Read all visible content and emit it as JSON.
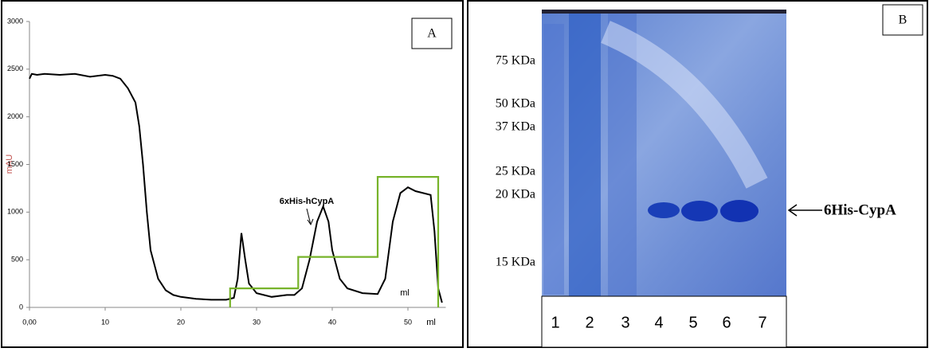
{
  "chart_data": {
    "type": "line",
    "panel_label": "A",
    "y_label": "mAU",
    "x_label": "ml",
    "annotations": [
      "6xHis-hCypA",
      "ml"
    ],
    "xlim": [
      0,
      55
    ],
    "xticks": [
      {
        "value": 0,
        "label": "0,00"
      },
      10,
      20,
      30,
      40,
      50
    ],
    "ylim": [
      0,
      3000
    ],
    "yticks": [
      0,
      500,
      1000,
      1500,
      2000,
      2500,
      3000
    ],
    "series": [
      {
        "color": "#000000",
        "x": [
          0,
          0.3,
          1,
          2,
          4,
          6,
          8,
          10,
          11,
          12,
          13,
          14,
          14.5,
          15,
          15.5,
          16,
          17,
          18,
          19,
          20,
          22,
          24,
          26,
          27,
          27.5,
          28,
          28.5,
          29,
          30,
          32,
          34,
          35,
          36,
          37,
          38,
          38.8,
          39.5,
          40,
          41,
          42,
          44,
          46,
          47,
          48,
          49,
          50,
          51,
          52,
          53,
          53.5,
          54,
          54.5
        ],
        "values": [
          2400,
          2450,
          2440,
          2450,
          2440,
          2450,
          2420,
          2440,
          2430,
          2400,
          2300,
          2150,
          1900,
          1500,
          1000,
          600,
          300,
          180,
          130,
          110,
          90,
          80,
          80,
          100,
          300,
          780,
          500,
          250,
          150,
          110,
          130,
          130,
          200,
          500,
          900,
          1060,
          900,
          600,
          300,
          200,
          150,
          140,
          300,
          900,
          1200,
          1260,
          1220,
          1200,
          1180,
          800,
          200,
          50
        ]
      },
      {
        "color": "#77b32a",
        "x": [
          26.5,
          26.5,
          35.5,
          35.5,
          46,
          46,
          54,
          54
        ],
        "values": [
          0,
          200,
          200,
          530,
          530,
          1370,
          1370,
          0
        ]
      }
    ]
  },
  "panel_b": {
    "panel_label": "B",
    "markers": [
      "75 KDa",
      "50 KDa",
      "37 KDa",
      "25 KDa",
      "20 KDa",
      "15 KDa"
    ],
    "lanes": [
      "1",
      "2",
      "3",
      "4",
      "5",
      "6",
      "7"
    ],
    "band_label": "6His-CypA"
  }
}
